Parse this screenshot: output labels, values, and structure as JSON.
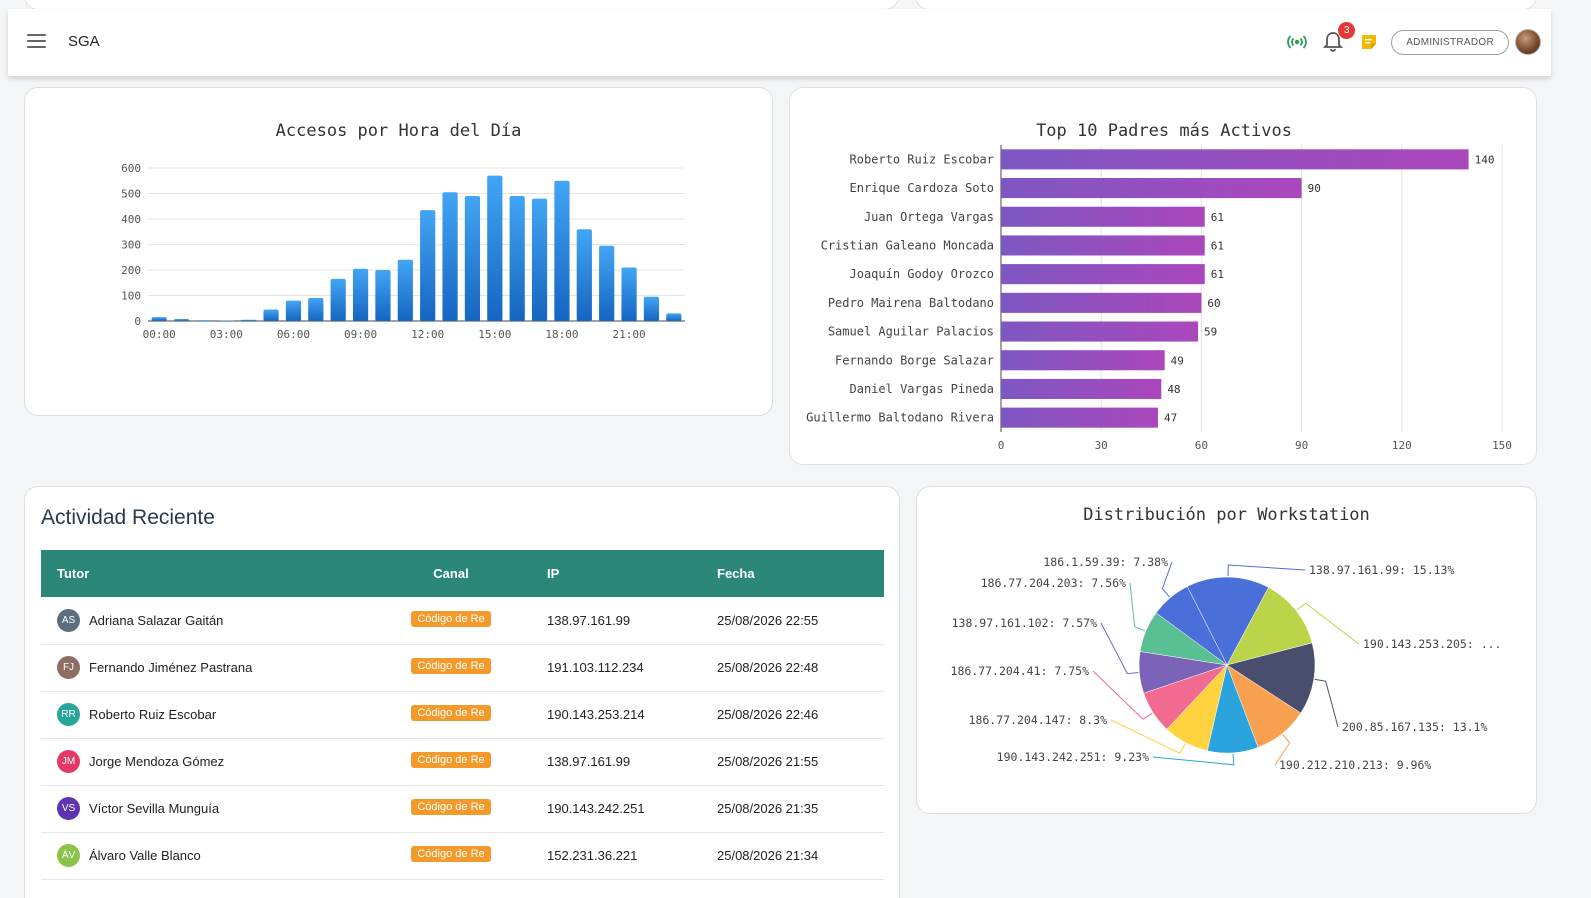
{
  "navbar": {
    "title": "SGA",
    "notification_count": "3",
    "role_label": "ADMINISTRADOR"
  },
  "icons": {
    "menu": "hamburger-icon",
    "signal": "broadcast-icon",
    "bell": "bell-icon",
    "note": "sticky-note-icon"
  },
  "colors": {
    "signal": "#2e9e57",
    "note": "#f5b800",
    "header_bg": "#2a877a",
    "bar_blue": "#1f82dc",
    "bar_purple": "#8a4fc4",
    "canal_tag": "#f39a2b"
  },
  "hourly_chart": {
    "chart_data": {
      "type": "bar",
      "title": "Accesos por Hora del Día",
      "x": [
        "00:00",
        "01:00",
        "02:00",
        "03:00",
        "04:00",
        "05:00",
        "06:00",
        "07:00",
        "08:00",
        "09:00",
        "10:00",
        "11:00",
        "12:00",
        "13:00",
        "14:00",
        "15:00",
        "16:00",
        "17:00",
        "18:00",
        "19:00",
        "20:00",
        "21:00",
        "22:00",
        "23:00"
      ],
      "values": [
        15,
        8,
        3,
        2,
        5,
        45,
        80,
        90,
        165,
        205,
        200,
        240,
        435,
        505,
        490,
        570,
        490,
        480,
        550,
        360,
        295,
        210,
        95,
        30
      ],
      "xticks": [
        "00:00",
        "03:00",
        "06:00",
        "09:00",
        "12:00",
        "15:00",
        "18:00",
        "21:00"
      ],
      "yticks": [
        "0",
        "100",
        "200",
        "300",
        "400",
        "500",
        "600"
      ],
      "ylim": [
        0,
        600
      ],
      "grid": true
    }
  },
  "top_parents_chart": {
    "chart_data": {
      "type": "bar",
      "orientation": "horizontal",
      "title": "Top 10 Padres más Activos",
      "categories": [
        "Roberto Ruiz Escobar",
        "Enrique Cardoza Soto",
        "Juan Ortega Vargas",
        "Cristian Galeano Moncada",
        "Joaquín Godoy Orozco",
        "Pedro Mairena Baltodano",
        "Samuel Aguilar Palacios",
        "Fernando Borge Salazar",
        "Daniel Vargas Pineda",
        "Guillermo Baltodano Rivera"
      ],
      "values": [
        140,
        90,
        61,
        61,
        61,
        60,
        59,
        49,
        48,
        47
      ],
      "data_labels": [
        "140",
        "90",
        "61",
        "61",
        "61",
        "60",
        "59",
        "49",
        "48",
        "47"
      ],
      "xticks": [
        "0",
        "30",
        "60",
        "90",
        "120",
        "150"
      ],
      "xlim": [
        0,
        150
      ],
      "grid": true
    }
  },
  "activity": {
    "title": "Actividad Reciente",
    "columns": [
      "Tutor",
      "Canal",
      "IP",
      "Fecha"
    ],
    "rows": [
      {
        "initials": "AS",
        "color": "#5a6e7f",
        "name": "Adriana Salazar Gaitán",
        "canal": "Código de Re",
        "ip": "138.97.161.99",
        "date": "25/08/2026 22:55"
      },
      {
        "initials": "FJ",
        "color": "#8d6e63",
        "name": "Fernando Jiménez Pastrana",
        "canal": "Código de Re",
        "ip": "191.103.112.234",
        "date": "25/08/2026 22:48"
      },
      {
        "initials": "RR",
        "color": "#26a69a",
        "name": "Roberto Ruiz Escobar",
        "canal": "Código de Re",
        "ip": "190.143.253.214",
        "date": "25/08/2026 22:46"
      },
      {
        "initials": "JM",
        "color": "#e53965",
        "name": "Jorge Mendoza Gómez",
        "canal": "Código de Re",
        "ip": "138.97.161.99",
        "date": "25/08/2026 21:55"
      },
      {
        "initials": "VS",
        "color": "#5e35b1",
        "name": "Víctor Sevilla Munguía",
        "canal": "Código de Re",
        "ip": "190.143.242.251",
        "date": "25/08/2026 21:35"
      },
      {
        "initials": "ÁV",
        "color": "#8bc34a",
        "name": "Álvaro Valle Blanco",
        "canal": "Código de Re",
        "ip": "152.231.36.221",
        "date": "25/08/2026 21:34"
      }
    ]
  },
  "workstation_chart": {
    "chart_data": {
      "type": "pie",
      "title": "Distribución por Workstation",
      "slices": [
        {
          "label": "138.97.161.99: 15.13%",
          "value": 15.13,
          "color": "#4a6fd8"
        },
        {
          "label": "190.143.253.205: ...",
          "value": 13.0,
          "color": "#bcd44a"
        },
        {
          "label": "200.85.167.135: 13.1%",
          "value": 13.1,
          "color": "#4a4e6e"
        },
        {
          "label": "190.212.210.213: 9.96%",
          "value": 9.96,
          "color": "#f7a04f"
        },
        {
          "label": "190.143.242.251: 9.23%",
          "value": 9.23,
          "color": "#2ba3dc"
        },
        {
          "label": "186.77.204.147: 8.3%",
          "value": 8.3,
          "color": "#ffd23f"
        },
        {
          "label": "186.77.204.41: 7.75%",
          "value": 7.75,
          "color": "#f06b8f"
        },
        {
          "label": "138.97.161.102: 7.57%",
          "value": 7.57,
          "color": "#7b63b8"
        },
        {
          "label": "186.77.204.203: 7.56%",
          "value": 7.56,
          "color": "#5bbf94"
        },
        {
          "label": "186.1.59.39: 7.38%",
          "value": 7.38,
          "color": "#4a6fd8"
        }
      ]
    }
  }
}
